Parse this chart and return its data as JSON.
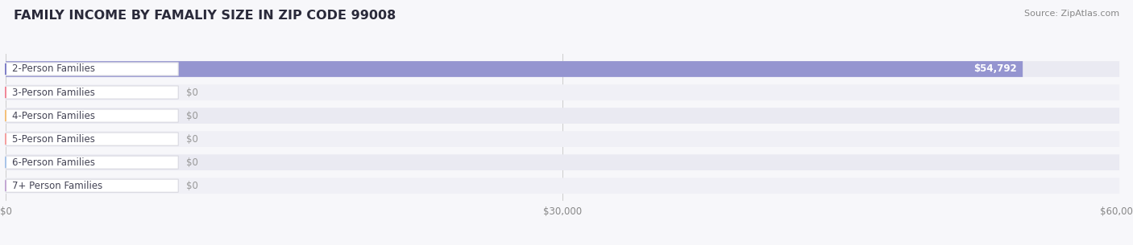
{
  "title": "FAMILY INCOME BY FAMALIY SIZE IN ZIP CODE 99008",
  "source": "Source: ZipAtlas.com",
  "categories": [
    "2-Person Families",
    "3-Person Families",
    "4-Person Families",
    "5-Person Families",
    "6-Person Families",
    "7+ Person Families"
  ],
  "values": [
    54792,
    0,
    0,
    0,
    0,
    0
  ],
  "bar_colors": [
    "#8080c8",
    "#f08899",
    "#f4c07a",
    "#f4a0a0",
    "#a8c4e8",
    "#c4a8d4"
  ],
  "value_labels": [
    "$54,792",
    "$0",
    "$0",
    "$0",
    "$0",
    "$0"
  ],
  "xlim": [
    0,
    60000
  ],
  "xticks": [
    0,
    30000,
    60000
  ],
  "xticklabels": [
    "$0",
    "$30,000",
    "$60,000"
  ],
  "background_color": "#f7f7fa",
  "row_colors": [
    "#eaeaf2",
    "#f0f0f6"
  ],
  "title_fontsize": 11.5,
  "source_fontsize": 8,
  "label_fontsize": 8.5,
  "tick_fontsize": 8.5
}
